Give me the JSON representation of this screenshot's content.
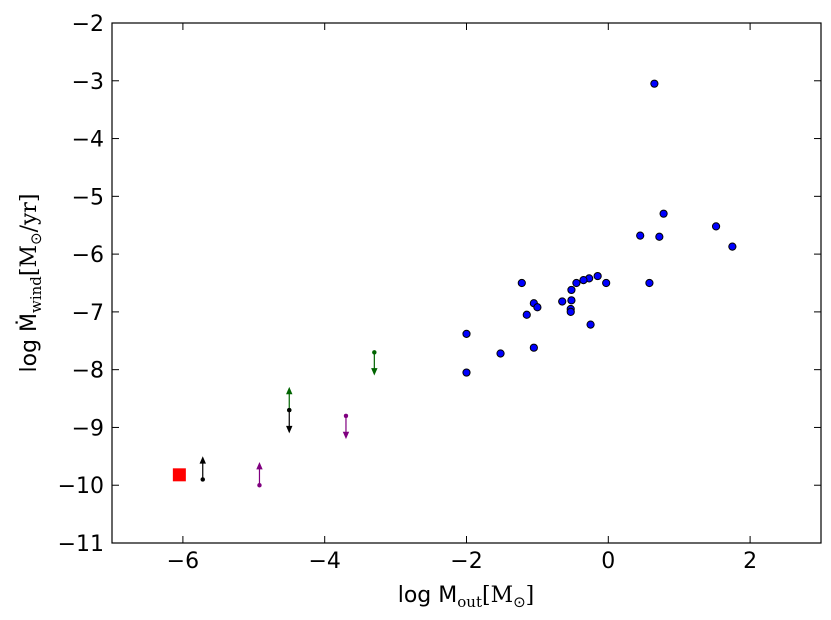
{
  "chart_data": {
    "type": "scatter",
    "xlabel": {
      "prefix": "log M",
      "subscript": "out",
      "unit": "[M",
      "unit_subscript": "⊙",
      "unit_close": "]"
    },
    "ylabel": {
      "prefix": "log Ṁ",
      "subscript": "wind",
      "unit": "[M",
      "unit_subscript": "⊙",
      "unit_close": "/yr]"
    },
    "xlim": [
      -7,
      3
    ],
    "ylim": [
      -11,
      -2
    ],
    "xticks": [
      -6,
      -4,
      -2,
      0,
      2
    ],
    "yticks": [
      -11,
      -10,
      -9,
      -8,
      -7,
      -6,
      -5,
      -4,
      -3,
      -2
    ],
    "xtick_labels": [
      "−6",
      "−4",
      "−2",
      "0",
      "2"
    ],
    "ytick_labels": [
      "−11",
      "−10",
      "−9",
      "−8",
      "−7",
      "−6",
      "−5",
      "−4",
      "−3",
      "−2"
    ],
    "grid": false,
    "legend": "none",
    "colors": {
      "points": "#0000ff",
      "square": "#ff0000",
      "black": "#000000",
      "purple": "#800080",
      "green": "#006400"
    },
    "series": [
      {
        "marker": "circle",
        "color": "#0000ff",
        "points": [
          [
            0.65,
            -3.05
          ],
          [
            0.78,
            -5.3
          ],
          [
            1.52,
            -5.52
          ],
          [
            1.75,
            -5.87
          ],
          [
            0.45,
            -5.68
          ],
          [
            0.72,
            -5.7
          ],
          [
            0.58,
            -6.5
          ],
          [
            -0.03,
            -6.5
          ],
          [
            -0.15,
            -6.38
          ],
          [
            -0.27,
            -6.42
          ],
          [
            -0.35,
            -6.45
          ],
          [
            -0.45,
            -6.5
          ],
          [
            -0.52,
            -6.62
          ],
          [
            -0.52,
            -6.8
          ],
          [
            -0.53,
            -6.95
          ],
          [
            -0.53,
            -7.0
          ],
          [
            -0.65,
            -6.82
          ],
          [
            -1.05,
            -6.85
          ],
          [
            -1.0,
            -6.92
          ],
          [
            -1.15,
            -7.05
          ],
          [
            -1.22,
            -6.5
          ],
          [
            -0.25,
            -7.22
          ],
          [
            -1.05,
            -7.62
          ],
          [
            -1.52,
            -7.72
          ],
          [
            -2.0,
            -7.38
          ],
          [
            -2.0,
            -8.05
          ]
        ]
      },
      {
        "marker": "square",
        "color": "#ff0000",
        "points": [
          [
            -6.05,
            -9.82
          ]
        ]
      }
    ],
    "limits": [
      {
        "x": -5.72,
        "y": -9.9,
        "direction": "up",
        "color": "#000000"
      },
      {
        "x": -4.92,
        "y": -10.0,
        "direction": "up",
        "color": "#800080"
      },
      {
        "x": -4.5,
        "y": -8.7,
        "direction": "up",
        "color": "#006400"
      },
      {
        "x": -4.5,
        "y": -8.7,
        "direction": "down",
        "color": "#000000"
      },
      {
        "x": -3.7,
        "y": -8.8,
        "direction": "down",
        "color": "#800080"
      },
      {
        "x": -3.3,
        "y": -7.7,
        "direction": "down",
        "color": "#006400"
      }
    ]
  }
}
